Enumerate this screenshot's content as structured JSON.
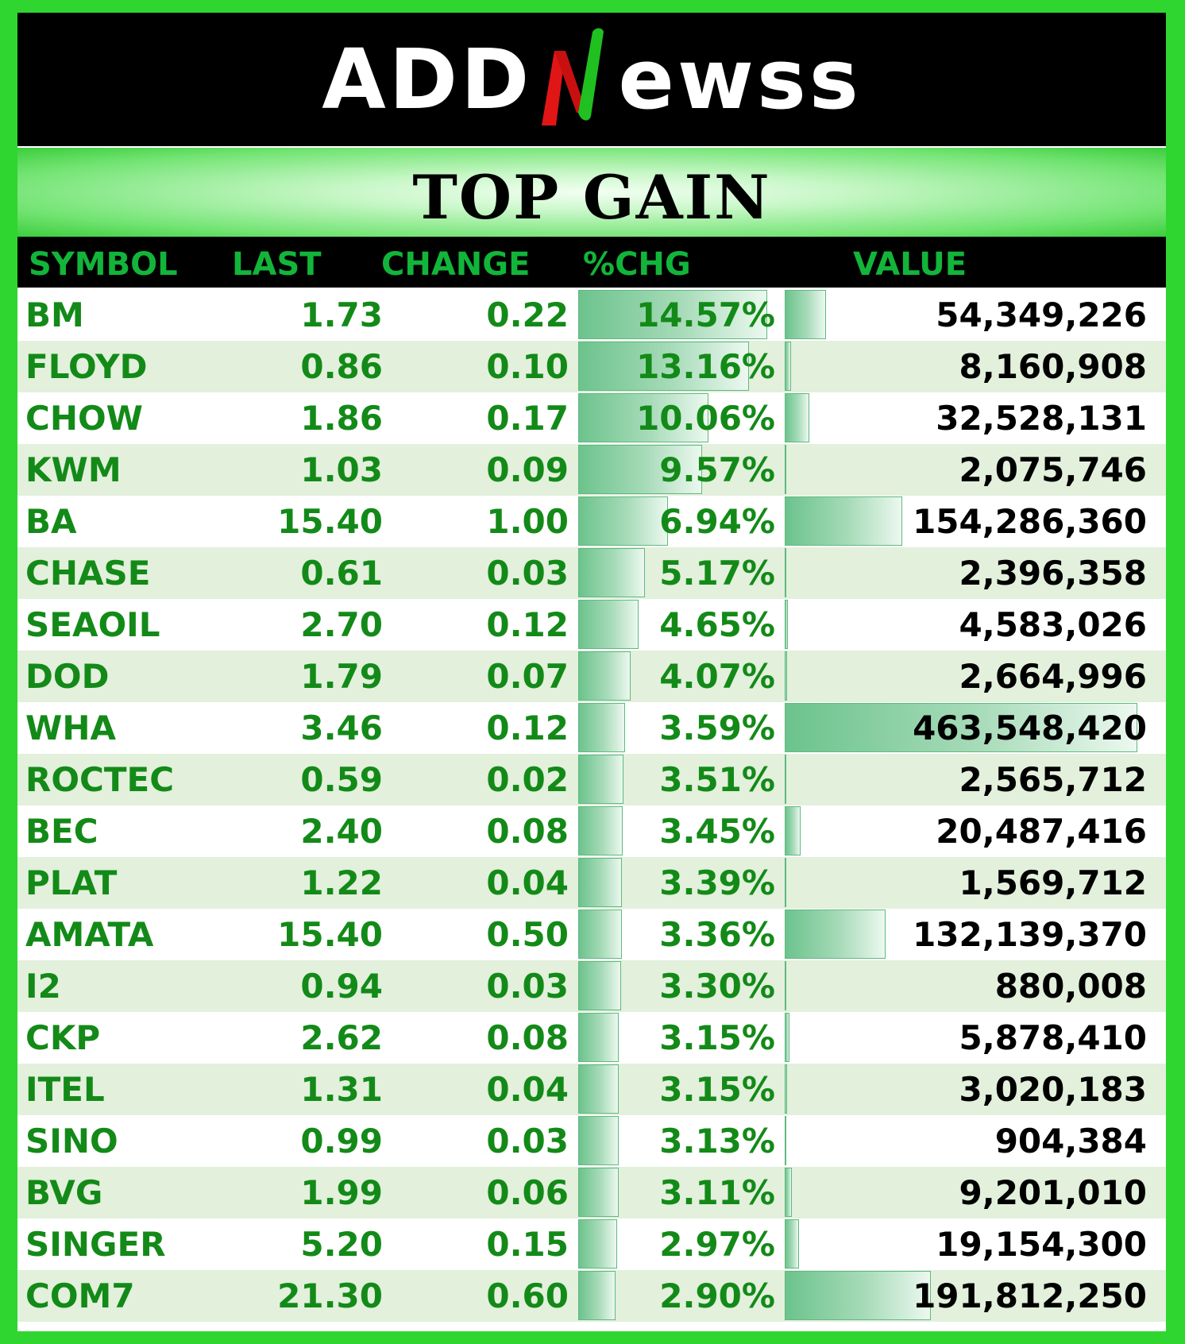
{
  "brand": {
    "prefix": "ADD",
    "suffix": "ewss",
    "mark_icon": "n-swoosh-icon",
    "colors": {
      "mark_red": "#e01616",
      "mark_green": "#20c020"
    }
  },
  "title": "TOP GAIN",
  "headers": {
    "symbol": "SYMBOL",
    "last": "LAST",
    "change": "CHANGE",
    "pct": "%CHG",
    "value": "VALUE"
  },
  "colors": {
    "border": "#2fd62f",
    "header_text": "#12b53a",
    "row_text": "#138a18",
    "alt_row": "#e2f0dc",
    "bar": "#6cc38c"
  },
  "rows": [
    {
      "symbol": "BM",
      "last": "1.73",
      "change": "0.22",
      "pct": "14.57%",
      "value": "54,349,226",
      "pct_num": 14.57,
      "value_num": 54349226
    },
    {
      "symbol": "FLOYD",
      "last": "0.86",
      "change": "0.10",
      "pct": "13.16%",
      "value": "8,160,908",
      "pct_num": 13.16,
      "value_num": 8160908
    },
    {
      "symbol": "CHOW",
      "last": "1.86",
      "change": "0.17",
      "pct": "10.06%",
      "value": "32,528,131",
      "pct_num": 10.06,
      "value_num": 32528131
    },
    {
      "symbol": "KWM",
      "last": "1.03",
      "change": "0.09",
      "pct": "9.57%",
      "value": "2,075,746",
      "pct_num": 9.57,
      "value_num": 2075746
    },
    {
      "symbol": "BA",
      "last": "15.40",
      "change": "1.00",
      "pct": "6.94%",
      "value": "154,286,360",
      "pct_num": 6.94,
      "value_num": 154286360
    },
    {
      "symbol": "CHASE",
      "last": "0.61",
      "change": "0.03",
      "pct": "5.17%",
      "value": "2,396,358",
      "pct_num": 5.17,
      "value_num": 2396358
    },
    {
      "symbol": "SEAOIL",
      "last": "2.70",
      "change": "0.12",
      "pct": "4.65%",
      "value": "4,583,026",
      "pct_num": 4.65,
      "value_num": 4583026
    },
    {
      "symbol": "DOD",
      "last": "1.79",
      "change": "0.07",
      "pct": "4.07%",
      "value": "2,664,996",
      "pct_num": 4.07,
      "value_num": 2664996
    },
    {
      "symbol": "WHA",
      "last": "3.46",
      "change": "0.12",
      "pct": "3.59%",
      "value": "463,548,420",
      "pct_num": 3.59,
      "value_num": 463548420
    },
    {
      "symbol": "ROCTEC",
      "last": "0.59",
      "change": "0.02",
      "pct": "3.51%",
      "value": "2,565,712",
      "pct_num": 3.51,
      "value_num": 2565712
    },
    {
      "symbol": "BEC",
      "last": "2.40",
      "change": "0.08",
      "pct": "3.45%",
      "value": "20,487,416",
      "pct_num": 3.45,
      "value_num": 20487416
    },
    {
      "symbol": "PLAT",
      "last": "1.22",
      "change": "0.04",
      "pct": "3.39%",
      "value": "1,569,712",
      "pct_num": 3.39,
      "value_num": 1569712
    },
    {
      "symbol": "AMATA",
      "last": "15.40",
      "change": "0.50",
      "pct": "3.36%",
      "value": "132,139,370",
      "pct_num": 3.36,
      "value_num": 132139370
    },
    {
      "symbol": "I2",
      "last": "0.94",
      "change": "0.03",
      "pct": "3.30%",
      "value": "880,008",
      "pct_num": 3.3,
      "value_num": 880008
    },
    {
      "symbol": "CKP",
      "last": "2.62",
      "change": "0.08",
      "pct": "3.15%",
      "value": "5,878,410",
      "pct_num": 3.15,
      "value_num": 5878410
    },
    {
      "symbol": "ITEL",
      "last": "1.31",
      "change": "0.04",
      "pct": "3.15%",
      "value": "3,020,183",
      "pct_num": 3.15,
      "value_num": 3020183
    },
    {
      "symbol": "SINO",
      "last": "0.99",
      "change": "0.03",
      "pct": "3.13%",
      "value": "904,384",
      "pct_num": 3.13,
      "value_num": 904384
    },
    {
      "symbol": "BVG",
      "last": "1.99",
      "change": "0.06",
      "pct": "3.11%",
      "value": "9,201,010",
      "pct_num": 3.11,
      "value_num": 9201010
    },
    {
      "symbol": "SINGER",
      "last": "5.20",
      "change": "0.15",
      "pct": "2.97%",
      "value": "19,154,300",
      "pct_num": 2.97,
      "value_num": 19154300
    },
    {
      "symbol": "COM7",
      "last": "21.30",
      "change": "0.60",
      "pct": "2.90%",
      "value": "191,812,250",
      "pct_num": 2.9,
      "value_num": 191812250
    }
  ]
}
